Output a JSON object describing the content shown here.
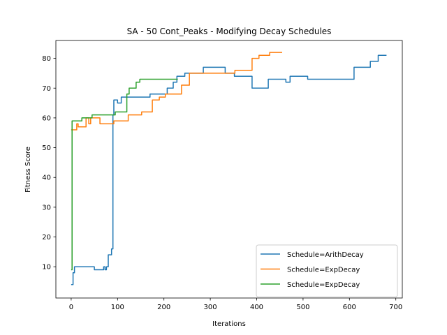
{
  "chart_data": {
    "type": "line",
    "title": "SA - 50 Cont_Peaks - Modifying Decay Schedules",
    "xlabel": "Iterations",
    "ylabel": "Fitness Score",
    "xlim": [
      -33,
      714
    ],
    "ylim": [
      -0.5,
      86
    ],
    "xticks": [
      "0",
      "100",
      "200",
      "300",
      "400",
      "500",
      "600",
      "700"
    ],
    "yticks": [
      "10",
      "20",
      "30",
      "40",
      "50",
      "60",
      "70",
      "80"
    ],
    "grid": false,
    "legend_position": "lower-right",
    "series": [
      {
        "name": "Schedule=ArithDecay",
        "color": "#1f77b4",
        "points": [
          [
            0,
            4
          ],
          [
            4,
            4
          ],
          [
            4,
            8
          ],
          [
            7,
            8
          ],
          [
            7,
            10
          ],
          [
            50,
            10
          ],
          [
            50,
            9
          ],
          [
            70,
            9
          ],
          [
            70,
            10
          ],
          [
            73,
            10
          ],
          [
            73,
            9
          ],
          [
            76,
            9
          ],
          [
            76,
            10
          ],
          [
            80,
            10
          ],
          [
            80,
            14
          ],
          [
            87,
            14
          ],
          [
            87,
            16
          ],
          [
            90,
            16
          ],
          [
            90,
            61
          ],
          [
            92,
            61
          ],
          [
            92,
            66
          ],
          [
            100,
            66
          ],
          [
            100,
            65
          ],
          [
            108,
            65
          ],
          [
            108,
            67
          ],
          [
            130,
            67
          ],
          [
            130,
            67
          ],
          [
            170,
            67
          ],
          [
            170,
            68
          ],
          [
            207,
            68
          ],
          [
            207,
            70
          ],
          [
            220,
            70
          ],
          [
            220,
            72
          ],
          [
            228,
            72
          ],
          [
            228,
            74
          ],
          [
            245,
            74
          ],
          [
            245,
            75
          ],
          [
            285,
            75
          ],
          [
            285,
            77
          ],
          [
            332,
            77
          ],
          [
            332,
            75
          ],
          [
            352,
            75
          ],
          [
            352,
            74
          ],
          [
            390,
            74
          ],
          [
            390,
            70
          ],
          [
            425,
            70
          ],
          [
            425,
            73
          ],
          [
            463,
            73
          ],
          [
            463,
            72
          ],
          [
            472,
            72
          ],
          [
            472,
            74
          ],
          [
            510,
            74
          ],
          [
            510,
            73
          ],
          [
            610,
            73
          ],
          [
            610,
            77
          ],
          [
            645,
            77
          ],
          [
            645,
            79
          ],
          [
            662,
            79
          ],
          [
            662,
            81
          ],
          [
            680,
            81
          ]
        ]
      },
      {
        "name": "Schedule=ExpDecay",
        "color": "#ff7f0e",
        "points": [
          [
            0,
            56
          ],
          [
            12,
            56
          ],
          [
            12,
            58
          ],
          [
            15,
            58
          ],
          [
            15,
            57
          ],
          [
            32,
            57
          ],
          [
            32,
            60
          ],
          [
            38,
            60
          ],
          [
            38,
            58
          ],
          [
            42,
            58
          ],
          [
            42,
            60
          ],
          [
            62,
            60
          ],
          [
            62,
            58
          ],
          [
            92,
            58
          ],
          [
            92,
            59
          ],
          [
            123,
            59
          ],
          [
            123,
            61
          ],
          [
            152,
            61
          ],
          [
            152,
            62
          ],
          [
            175,
            62
          ],
          [
            175,
            66
          ],
          [
            190,
            66
          ],
          [
            190,
            67
          ],
          [
            203,
            67
          ],
          [
            203,
            68
          ],
          [
            238,
            68
          ],
          [
            238,
            71
          ],
          [
            255,
            71
          ],
          [
            255,
            75
          ],
          [
            353,
            75
          ],
          [
            353,
            76
          ],
          [
            390,
            76
          ],
          [
            390,
            80
          ],
          [
            405,
            80
          ],
          [
            405,
            81
          ],
          [
            428,
            81
          ],
          [
            428,
            82
          ],
          [
            455,
            82
          ]
        ]
      },
      {
        "name": "Schedule=ExpDecay",
        "color": "#2ca02c",
        "points": [
          [
            0,
            9
          ],
          [
            2,
            9
          ],
          [
            2,
            59
          ],
          [
            23,
            59
          ],
          [
            23,
            60
          ],
          [
            45,
            60
          ],
          [
            45,
            61
          ],
          [
            95,
            61
          ],
          [
            95,
            62
          ],
          [
            120,
            62
          ],
          [
            120,
            68
          ],
          [
            125,
            68
          ],
          [
            125,
            70
          ],
          [
            140,
            70
          ],
          [
            140,
            72
          ],
          [
            148,
            72
          ],
          [
            148,
            73
          ],
          [
            230,
            73
          ]
        ]
      }
    ]
  }
}
